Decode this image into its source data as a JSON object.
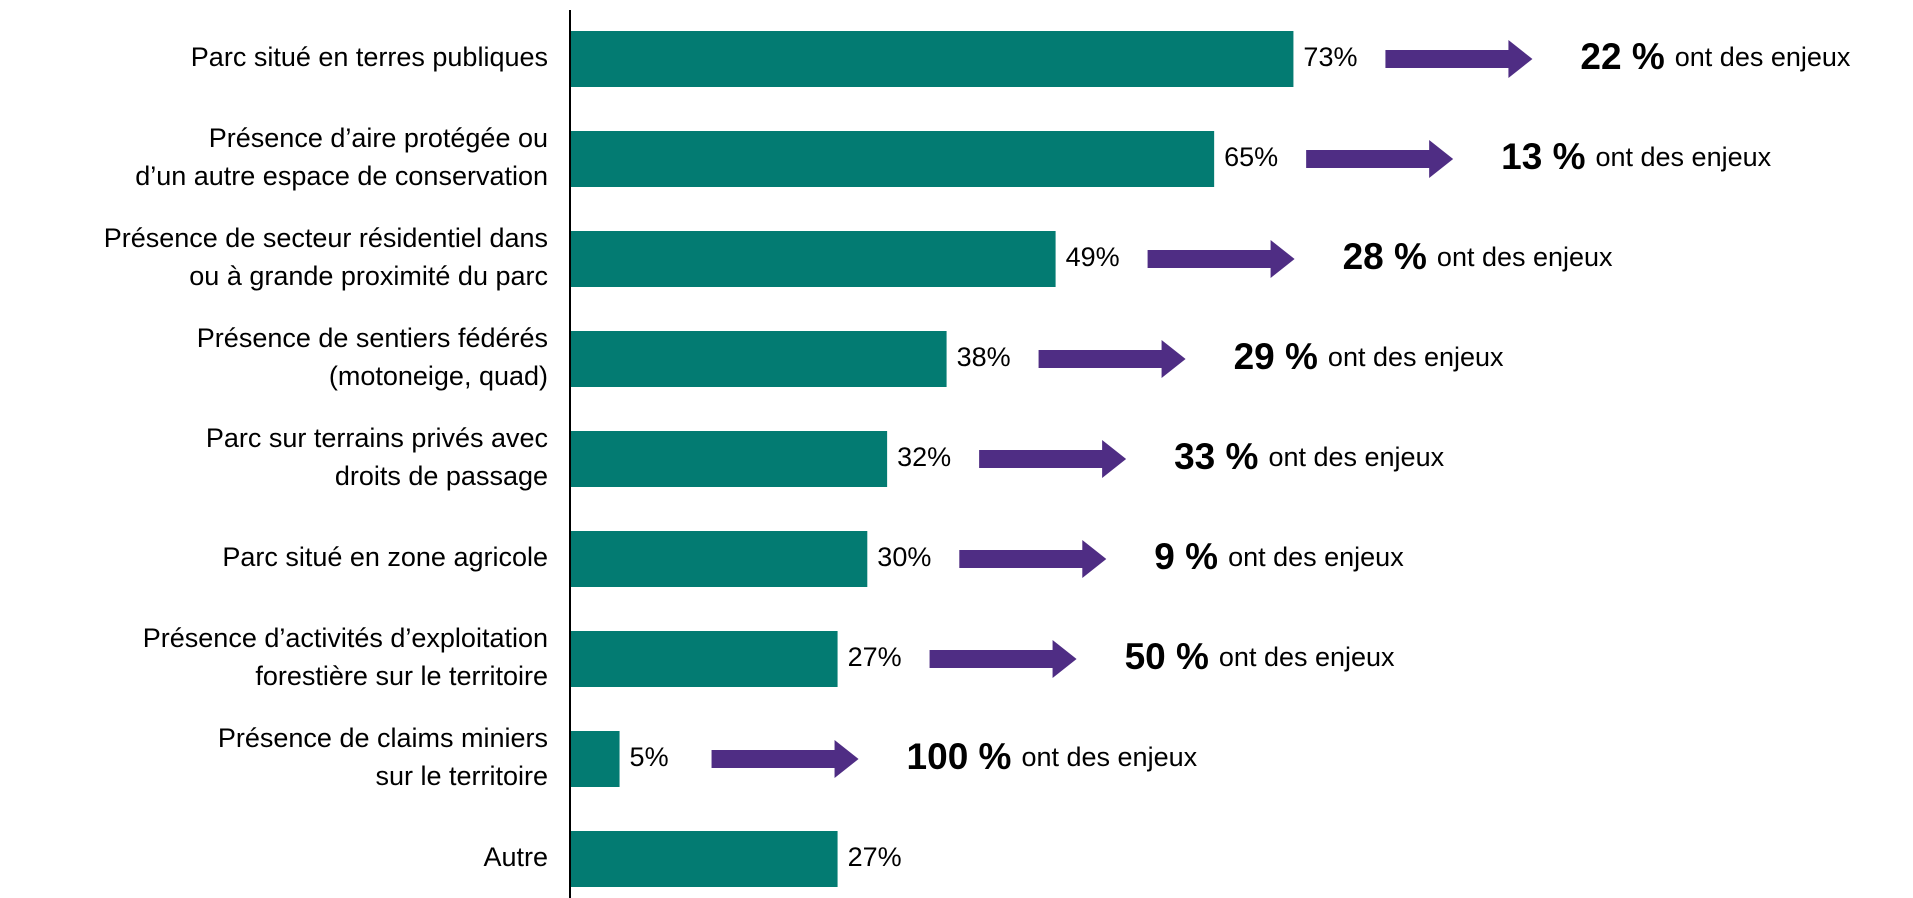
{
  "chart_data": {
    "type": "bar",
    "orientation": "horizontal",
    "categories": [
      "Parc situé en terres publiques",
      "Présence d’aire protégée ou\nd’un autre espace de conservation",
      "Présence de secteur résidentiel dans\nou à grande proximité du parc",
      "Présence de sentiers fédérés\n(motoneige, quad)",
      "Parc sur terrains privés avec\ndroits de passage",
      "Parc situé en zone agricole",
      "Présence d’activités d’exploitation\nforestière sur le territoire",
      "Présence de claims miniers\nsur le territoire",
      "Autre"
    ],
    "values": [
      73,
      65,
      49,
      38,
      32,
      30,
      27,
      5,
      27
    ],
    "value_labels": [
      "73%",
      "65%",
      "49%",
      "38%",
      "32%",
      "30%",
      "27%",
      "5%",
      "27%"
    ],
    "color": "#037b72",
    "arrow_color": "#4f2d84",
    "xlim": [
      0,
      100
    ],
    "annotations": [
      {
        "label": "22 %",
        "text": "ont des enjeux"
      },
      {
        "label": "13 %",
        "text": "ont des enjeux"
      },
      {
        "label": "28 %",
        "text": "ont des enjeux"
      },
      {
        "label": "29 %",
        "text": "ont des enjeux"
      },
      {
        "label": "33 %",
        "text": "ont des enjeux"
      },
      {
        "label": "9 %",
        "text": "ont des enjeux"
      },
      {
        "label": "50 %",
        "text": "ont des enjeux"
      },
      {
        "label": "100 %",
        "text": "ont des enjeux"
      }
    ]
  }
}
